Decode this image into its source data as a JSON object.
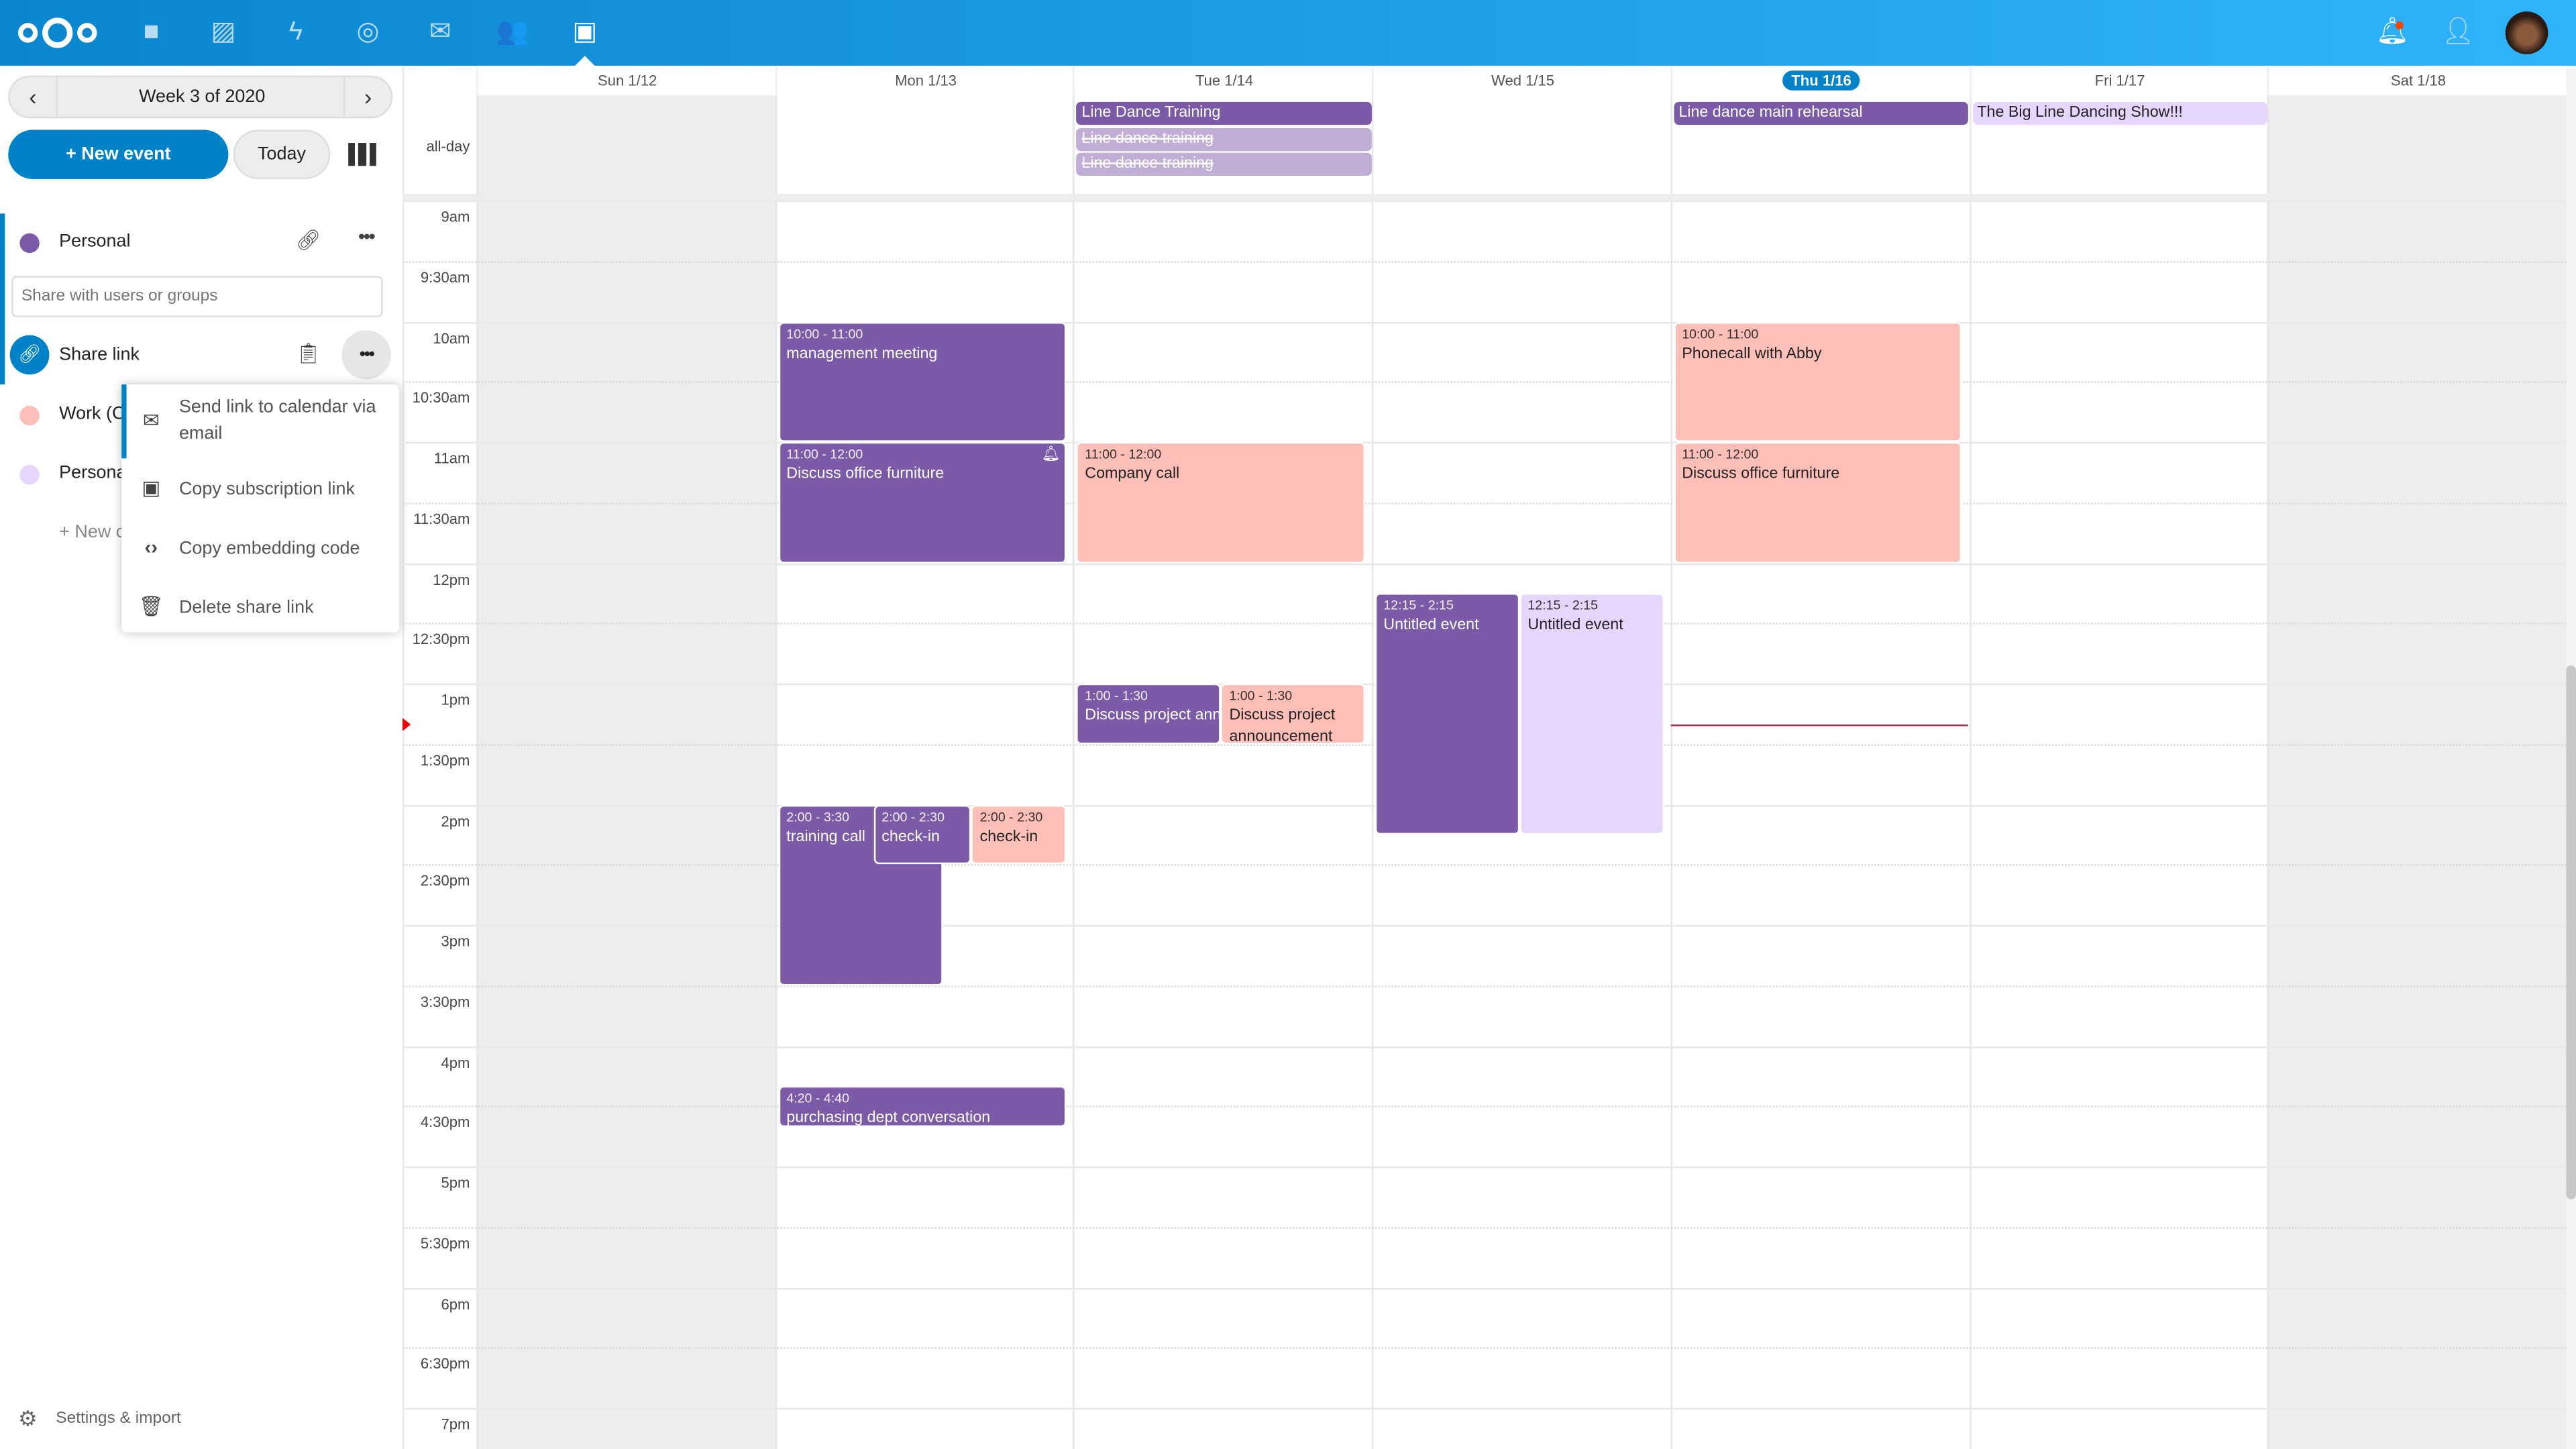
{
  "header": {
    "apps": [
      "logo",
      "files-icon",
      "photos-icon",
      "activity-icon",
      "talk-icon",
      "mail-icon",
      "contacts-icon",
      "calendar-icon"
    ],
    "right": [
      "notifications-icon",
      "contacts-menu-icon",
      "avatar"
    ],
    "accent": "#0082c9"
  },
  "sidebar": {
    "week_label": "Week 3 of 2020",
    "new_event": "+ New event",
    "today": "Today",
    "calendars": [
      {
        "name": "Personal",
        "color": "#7b5aa8"
      },
      {
        "name": "Work (C",
        "color": "#fdbfb7"
      },
      {
        "name": "Persona",
        "color": "#e6d5fd"
      }
    ],
    "share_placeholder": "Share with users or groups",
    "share_link": "Share link",
    "new_calendar": "+ New c",
    "settings": "Settings & import",
    "menu": [
      {
        "label": "Send link to calendar via email",
        "icon": "mail-icon"
      },
      {
        "label": "Copy subscription link",
        "icon": "calendar-icon"
      },
      {
        "label": "Copy embedding code",
        "icon": "code-icon"
      },
      {
        "label": "Delete share link",
        "icon": "trash-icon"
      }
    ]
  },
  "calendar": {
    "days": [
      "Sun 1/12",
      "Mon 1/13",
      "Tue 1/14",
      "Wed 1/15",
      "Thu 1/16",
      "Fri 1/17",
      "Sat 1/18"
    ],
    "today_index": 4,
    "allday_label": "all-day",
    "times": [
      "9am",
      "9:30am",
      "10am",
      "10:30am",
      "11am",
      "11:30am",
      "12pm",
      "12:30pm",
      "1pm",
      "1:30pm",
      "2pm",
      "2:30pm",
      "3pm",
      "3:30pm",
      "4pm",
      "4:30pm",
      "5pm",
      "5:30pm",
      "6pm",
      "6:30pm",
      "7pm"
    ],
    "allday_events": [
      {
        "title": "Line Dance Training",
        "day": "Tue 1/14",
        "style": "purple"
      },
      {
        "title": "Line dance training",
        "day": "Tue 1/14",
        "style": "cancelled"
      },
      {
        "title": "Line dance training",
        "day": "Tue 1/14",
        "style": "cancelled"
      },
      {
        "title": "Line dance main rehearsal",
        "day": "Thu 1/16",
        "style": "purple"
      },
      {
        "title": "The Big Line Dancing Show!!!",
        "day": "Fri 1/17",
        "style": "lavender"
      }
    ],
    "events": [
      {
        "time": "10:00 - 11:00",
        "title": "management meeting",
        "day": "Mon 1/13",
        "color": "#7b5aa8"
      },
      {
        "time": "11:00 - 12:00",
        "title": "Discuss office furniture",
        "day": "Mon 1/13",
        "color": "#7b5aa8",
        "alarm": true
      },
      {
        "time": "11:00 - 12:00",
        "title": "Company call",
        "day": "Tue 1/14",
        "color": "#fdbfb7"
      },
      {
        "time": "10:00 - 11:00",
        "title": "Phonecall with Abby",
        "day": "Thu 1/16",
        "color": "#fdbfb7"
      },
      {
        "time": "11:00 - 12:00",
        "title": "Discuss office furniture",
        "day": "Thu 1/16",
        "color": "#fdbfb7"
      },
      {
        "time": "12:15 - 2:15",
        "title": "Untitled event",
        "day": "Wed 1/15",
        "color": "#7b5aa8"
      },
      {
        "time": "12:15 - 2:15",
        "title": "Untitled event",
        "day": "Wed 1/15",
        "color": "#e6d5fd"
      },
      {
        "time": "1:00 - 1:30",
        "title": "Discuss project announcement",
        "day": "Tue 1/14",
        "color": "#7b5aa8"
      },
      {
        "time": "1:00 - 1:30",
        "title": "Discuss project announcement",
        "day": "Tue 1/14",
        "color": "#fdbfb7"
      },
      {
        "time": "2:00 - 3:30",
        "title": "training call",
        "day": "Mon 1/13",
        "color": "#7b5aa8"
      },
      {
        "time": "2:00 - 2:30",
        "title": "check-in",
        "day": "Mon 1/13",
        "color": "#7b5aa8"
      },
      {
        "time": "2:00 - 2:30",
        "title": "check-in",
        "day": "Mon 1/13",
        "color": "#fdbfb7"
      },
      {
        "time": "4:20 - 4:40",
        "title": "purchasing dept conversation",
        "day": "Mon 1/13",
        "color": "#7b5aa8"
      }
    ],
    "current_time": "1:20pm"
  }
}
